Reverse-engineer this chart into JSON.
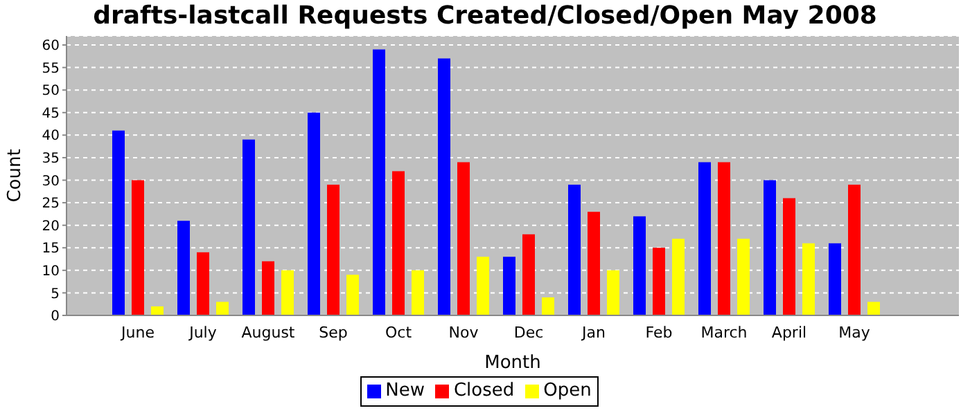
{
  "chart_data": {
    "type": "bar",
    "title": "drafts-lastcall Requests Created/Closed/Open May 2008",
    "xlabel": "Month",
    "ylabel": "Count",
    "categories": [
      "June",
      "July",
      "August",
      "Sep",
      "Oct",
      "Nov",
      "Dec",
      "Jan",
      "Feb",
      "March",
      "April",
      "May"
    ],
    "series": [
      {
        "name": "New",
        "color": "#0000ff",
        "values": [
          41,
          21,
          39,
          45,
          59,
          57,
          13,
          29,
          22,
          34,
          30,
          16
        ]
      },
      {
        "name": "Closed",
        "color": "#ff0000",
        "values": [
          30,
          14,
          12,
          29,
          32,
          34,
          18,
          23,
          15,
          34,
          26,
          29
        ]
      },
      {
        "name": "Open",
        "color": "#ffff00",
        "values": [
          2,
          3,
          10,
          9,
          10,
          13,
          4,
          10,
          17,
          17,
          16,
          3
        ]
      }
    ],
    "ylim": [
      0,
      62
    ],
    "yticks": [
      0,
      5,
      10,
      15,
      20,
      25,
      30,
      35,
      40,
      45,
      50,
      55,
      60
    ],
    "grid": "y",
    "legend": "bottom"
  }
}
